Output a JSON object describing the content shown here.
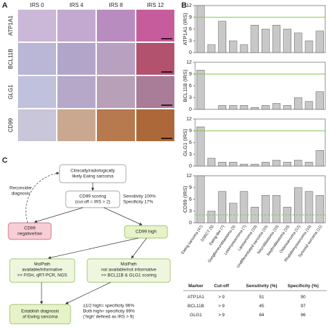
{
  "panel_labels": [
    "A",
    "B",
    "C"
  ],
  "panel_a": {
    "columns": [
      "IRS 0",
      "IRS 4",
      "IRS 8",
      "IRS 12"
    ],
    "rows": [
      "ATP1A1",
      "BCL11B",
      "GLG1",
      "CD99"
    ]
  },
  "chart_data": [
    {
      "type": "bar",
      "y_label": "ATP1A1 (IRS)",
      "values": [
        12,
        2,
        8,
        3,
        2,
        7,
        6,
        7,
        6,
        5,
        3,
        5.5
      ],
      "color": "#c8c8c8",
      "ylim": [
        0,
        12
      ],
      "yticks": [
        0,
        3,
        6,
        9,
        12
      ],
      "cutoff": 9,
      "cutoff_style": "solid",
      "cutoff_color": "#7dc242"
    },
    {
      "type": "bar",
      "y_label": "BCL11B (IRS)",
      "values": [
        10,
        0,
        1,
        1,
        1,
        0.5,
        1,
        1.5,
        1,
        3,
        2,
        4.5
      ],
      "color": "#c8c8c8",
      "ylim": [
        0,
        12
      ],
      "yticks": [
        0,
        3,
        6,
        9,
        12
      ],
      "cutoff": 9,
      "cutoff_style": "solid",
      "cutoff_color": "#7dc242"
    },
    {
      "type": "bar",
      "y_label": "GLG1 (IRS)",
      "values": [
        10,
        2,
        1,
        1,
        0.5,
        0.5,
        1,
        1.5,
        1,
        1.5,
        1,
        4
      ],
      "color": "#c8c8c8",
      "ylim": [
        0,
        12
      ],
      "yticks": [
        0,
        3,
        6,
        9,
        12
      ],
      "cutoff": 9,
      "cutoff_style": "solid",
      "cutoff_color": "#7dc242"
    },
    {
      "type": "bar",
      "y_label": "CD99 (IRS)",
      "values": [
        12,
        3,
        8,
        5,
        8,
        4,
        7,
        7,
        4,
        9,
        8,
        7
      ],
      "color": "#c8c8c8",
      "ylim": [
        0,
        12
      ],
      "yticks": [
        0,
        3,
        6,
        9,
        12
      ],
      "cutoff": 2,
      "cutoff_style": "dashed",
      "cutoff_color": "#7dc242",
      "categories": [
        "Ewing sarcoma (47)",
        "DSRCT (5)",
        "Ewing-like (7)",
        "Ganglioneuroblastoma (3)",
        "Leiomyosarcoma (7)",
        "Liposarcoma (10)",
        "Undifferentiated sarcoma (10)",
        "Neuroblastoma (10)",
        "Nephroblastoma (10)",
        "Osteosarcoma (12)",
        "Rhabdomyosarcoma (10)",
        "Synovial sarcoma (11)"
      ]
    }
  ],
  "flowchart": {
    "start": [
      "Clinically/radiologically",
      "likely Ewing sarcoma"
    ],
    "scoring": [
      "CD99 scoring",
      "(cut-off = IRS > 2)"
    ],
    "scoring_note": [
      "Sensitivity 100%",
      "Specificity 17%"
    ],
    "reconsider": [
      "Reconsider",
      "diagnosis"
    ],
    "low": [
      "CD99",
      "negative/low"
    ],
    "high": [
      "CD99 high"
    ],
    "molpath_yes": [
      "MolPath",
      "available/informative",
      ">> FISH, qRT-PCR, NGS"
    ],
    "molpath_no": [
      "MolPath",
      "not available/not informative",
      ">> BCL11B & GLG1 scoring"
    ],
    "rule": [
      "≥1/2 high= specificity 96%",
      "Both high= specificity 99%",
      "(‘high’ defined as IRS > 9)"
    ],
    "final": [
      "Establish diagnosis",
      "of Ewing sarcoma"
    ]
  },
  "table": {
    "header": [
      "Marker",
      "Cut-off",
      "Sensitivity (%)",
      "Specificity (%)"
    ],
    "rows": [
      [
        "ATP1A1",
        "> 9",
        "51",
        "90"
      ],
      [
        "BCL11B",
        "> 9",
        "45",
        "97"
      ],
      [
        "GLG1",
        "> 9",
        "64",
        "96"
      ]
    ]
  }
}
